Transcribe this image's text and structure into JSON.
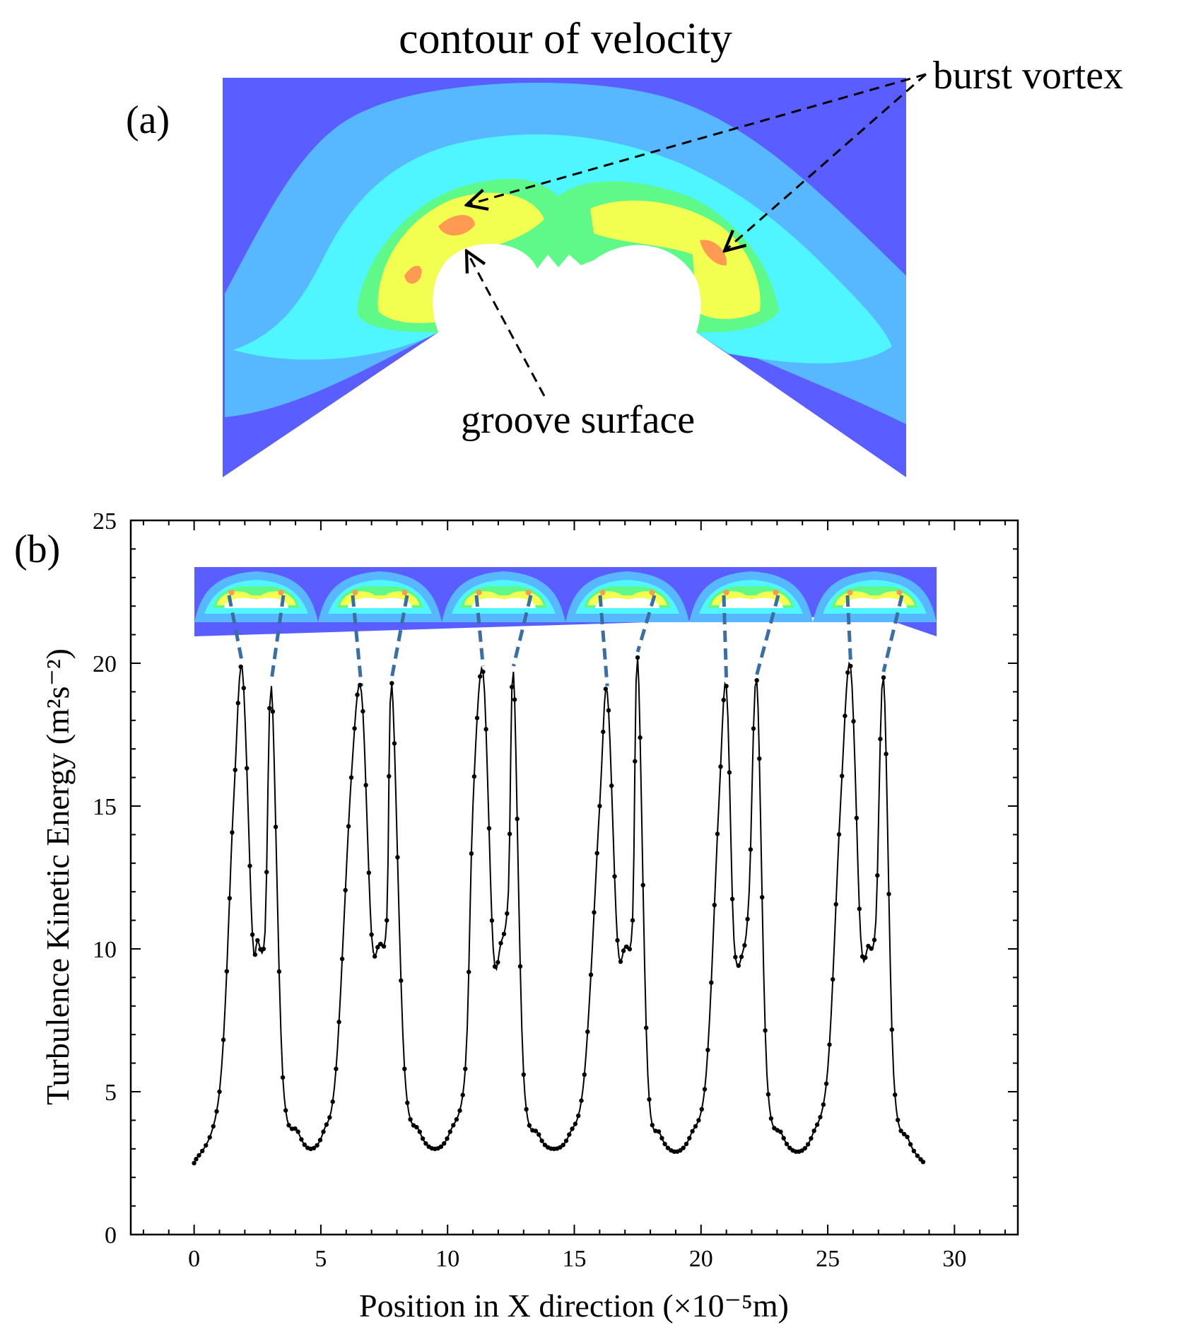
{
  "panel_a": {
    "title": "contour of velocity",
    "panel_label": "(a)",
    "annotation_vortex": "burst vortex",
    "annotation_groove": "groove surface",
    "contour_colors": [
      "#5a5dff",
      "#58b8ff",
      "#4ff5ff",
      "#5ff98a",
      "#f2ff50",
      "#ff9a52"
    ]
  },
  "panel_b": {
    "panel_label": "(b)",
    "inset_groove_count": 6
  },
  "chart_data": {
    "type": "line",
    "xlabel": "Position in  X direction (×10⁻⁵m)",
    "ylabel": "Turbulence Kinetic Energy (m²s⁻²)",
    "xlim": [
      -2.5,
      32.5
    ],
    "ylim": [
      0,
      25
    ],
    "xticks": [
      0,
      5,
      10,
      15,
      20,
      25,
      30
    ],
    "yticks": [
      0,
      5,
      10,
      15,
      20,
      25
    ],
    "grid": false,
    "marker": "dot",
    "line_color": "#000000",
    "series": [
      {
        "x": [
          0,
          1.0,
          1.55,
          1.9,
          2.3,
          2.5,
          2.8,
          3.05,
          3.5,
          4.1,
          4.6,
          5.1,
          5.6,
          6.2,
          6.6,
          7.0,
          7.3,
          7.6,
          7.8,
          8.3,
          8.9,
          9.5,
          10.1,
          10.7,
          11.0,
          11.4,
          11.8,
          12.1,
          12.4,
          12.6,
          13.0,
          13.6,
          14.2,
          14.8,
          15.4,
          16.0,
          16.3,
          16.7,
          17.0,
          17.3,
          17.5,
          17.9,
          18.4,
          19.0,
          19.6,
          20.2,
          20.7,
          21.0,
          21.3,
          21.65,
          21.9,
          22.2,
          22.6,
          23.2,
          23.8,
          24.4,
          25.0,
          25.5,
          25.9,
          26.3,
          26.6,
          26.9,
          27.2,
          27.6,
          28.2,
          28.8
        ],
        "y": [
          2.5,
          5.0,
          15.0,
          19.8,
          10.5,
          10.3,
          10.6,
          19.2,
          5.5,
          3.6,
          3.0,
          3.6,
          5.8,
          16.0,
          19.0,
          10.5,
          10.2,
          11.0,
          19.3,
          5.8,
          3.6,
          3.0,
          3.6,
          5.8,
          15.0,
          19.7,
          10.0,
          10.2,
          12.0,
          19.7,
          5.6,
          3.5,
          3.0,
          3.5,
          5.6,
          15.0,
          19.0,
          10.3,
          10.1,
          11.0,
          20.2,
          5.6,
          3.5,
          2.9,
          3.5,
          5.6,
          15.0,
          19.2,
          10.3,
          9.9,
          12.0,
          19.4,
          5.6,
          3.5,
          2.9,
          3.5,
          5.8,
          15.0,
          19.9,
          10.4,
          10.1,
          11.0,
          19.5,
          5.6,
          3.3,
          2.5
        ]
      }
    ]
  }
}
